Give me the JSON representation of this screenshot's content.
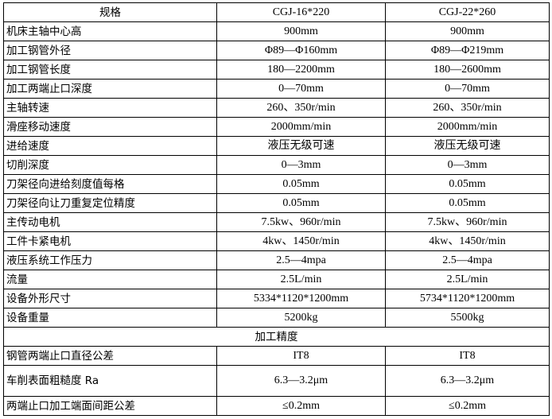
{
  "header": {
    "label": "规格",
    "models": [
      "CGJ-16*220",
      "CGJ-22*260"
    ]
  },
  "rows": [
    {
      "label": "机床主轴中心高",
      "values": [
        "900mm",
        "900mm"
      ]
    },
    {
      "label": "加工钢管外径",
      "values": [
        "Φ89—Φ160mm",
        "Φ89—Φ219mm"
      ]
    },
    {
      "label": "加工钢管长度",
      "values": [
        "180—2200mm",
        "180—2600mm"
      ]
    },
    {
      "label": "加工两端止口深度",
      "values": [
        "0—70mm",
        "0—70mm"
      ]
    },
    {
      "label": "主轴转速",
      "values": [
        "260、350r/min",
        "260、350r/min"
      ]
    },
    {
      "label": "滑座移动速度",
      "values": [
        "2000mm/min",
        "2000mm/min"
      ]
    },
    {
      "label": "进给速度",
      "values": [
        "液压无级可速",
        "液压无级可速"
      ]
    },
    {
      "label": "切削深度",
      "values": [
        "0—3mm",
        "0—3mm"
      ]
    },
    {
      "label": "刀架径向进给刻度值每格",
      "values": [
        "0.05mm",
        "0.05mm"
      ]
    },
    {
      "label": "刀架径向让刀重复定位精度",
      "values": [
        "0.05mm",
        "0.05mm"
      ]
    },
    {
      "label": "主传动电机",
      "values": [
        "7.5kw、960r/min",
        "7.5kw、960r/min"
      ]
    },
    {
      "label": "工件卡紧电机",
      "values": [
        "4kw、1450r/min",
        "4kw、1450r/min"
      ]
    },
    {
      "label": "液压系统工作压力",
      "values": [
        "2.5—4mpa",
        "2.5—4mpa"
      ]
    },
    {
      "label": "流量",
      "values": [
        "2.5L/min",
        "2.5L/min"
      ]
    },
    {
      "label": "设备外形尺寸",
      "values": [
        "5334*1120*1200mm",
        "5734*1120*1200mm"
      ]
    },
    {
      "label": "设备重量",
      "values": [
        "5200kg",
        "5500kg"
      ]
    }
  ],
  "section": {
    "label": "加工精度"
  },
  "precision_rows": [
    {
      "label": "钢管两端止口直径公差",
      "values": [
        "IT8",
        "IT8"
      ]
    },
    {
      "label": "车削表面粗糙度 Ra",
      "values": [
        "6.3—3.2μm",
        "6.3—3.2μm"
      ]
    },
    {
      "label": "两端止口加工端面间距公差",
      "values": [
        "≤0.2mm",
        "≤0.2mm"
      ]
    }
  ]
}
